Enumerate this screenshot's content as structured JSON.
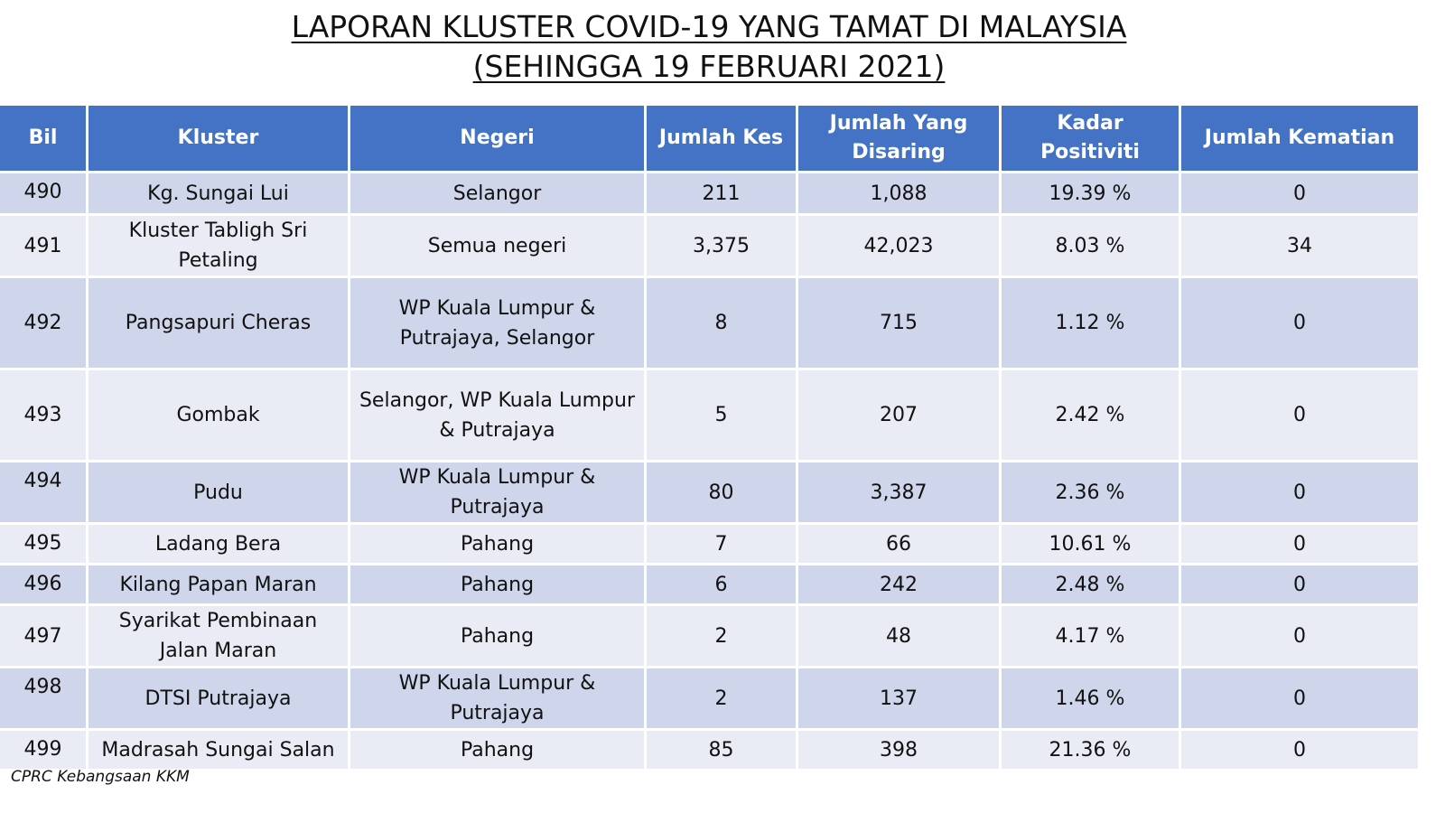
{
  "title": {
    "line1": "LAPORAN KLUSTER COVID-19 YANG TAMAT DI MALAYSIA",
    "line2": "(SEHINGGA 19 FEBRUARI 2021)"
  },
  "table": {
    "headers": {
      "bil": "Bil",
      "kluster": "Kluster",
      "negeri": "Negeri",
      "jumlah_kes": "Jumlah Kes",
      "jumlah_disaring": "Jumlah Yang Disaring",
      "kadar_positiviti": "Kadar Positiviti",
      "jumlah_kematian": "Jumlah Kematian"
    },
    "rows": [
      {
        "bil": "490",
        "kluster": "Kg. Sungai Lui",
        "negeri": "Selangor",
        "jumlah_kes": "211",
        "jumlah_disaring": "1,088",
        "kadar_positiviti": "19.39 %",
        "jumlah_kematian": "0"
      },
      {
        "bil": "491",
        "kluster": "Kluster Tabligh Sri Petaling",
        "negeri": "Semua negeri",
        "jumlah_kes": "3,375",
        "jumlah_disaring": "42,023",
        "kadar_positiviti": "8.03 %",
        "jumlah_kematian": "34"
      },
      {
        "bil": "492",
        "kluster": "Pangsapuri Cheras",
        "negeri": "WP Kuala Lumpur & Putrajaya, Selangor",
        "jumlah_kes": "8",
        "jumlah_disaring": "715",
        "kadar_positiviti": "1.12 %",
        "jumlah_kematian": "0"
      },
      {
        "bil": "493",
        "kluster": "Gombak",
        "negeri": "Selangor, WP Kuala Lumpur & Putrajaya",
        "jumlah_kes": "5",
        "jumlah_disaring": "207",
        "kadar_positiviti": "2.42 %",
        "jumlah_kematian": "0"
      },
      {
        "bil": "494",
        "kluster": "Pudu",
        "negeri": "WP Kuala Lumpur & Putrajaya",
        "jumlah_kes": "80",
        "jumlah_disaring": "3,387",
        "kadar_positiviti": "2.36 %",
        "jumlah_kematian": "0"
      },
      {
        "bil": "495",
        "kluster": "Ladang Bera",
        "negeri": "Pahang",
        "jumlah_kes": "7",
        "jumlah_disaring": "66",
        "kadar_positiviti": "10.61 %",
        "jumlah_kematian": "0"
      },
      {
        "bil": "496",
        "kluster": "Kilang Papan Maran",
        "negeri": "Pahang",
        "jumlah_kes": "6",
        "jumlah_disaring": "242",
        "kadar_positiviti": "2.48 %",
        "jumlah_kematian": "0"
      },
      {
        "bil": "497",
        "kluster": "Syarikat Pembinaan Jalan Maran",
        "negeri": "Pahang",
        "jumlah_kes": "2",
        "jumlah_disaring": "48",
        "kadar_positiviti": "4.17 %",
        "jumlah_kematian": "0"
      },
      {
        "bil": "498",
        "kluster": "DTSI Putrajaya",
        "negeri": "WP Kuala Lumpur & Putrajaya",
        "jumlah_kes": "2",
        "jumlah_disaring": "137",
        "kadar_positiviti": "1.46 %",
        "jumlah_kematian": "0"
      },
      {
        "bil": "499",
        "kluster": "Madrasah Sungai Salan",
        "negeri": "Pahang",
        "jumlah_kes": "85",
        "jumlah_disaring": "398",
        "kadar_positiviti": "21.36 %",
        "jumlah_kematian": "0"
      }
    ]
  },
  "footer": {
    "source": "CPRC Kebangsaan KKM"
  },
  "colors": {
    "header_bg": "#4472c4",
    "row_dark": "#cfd5ea",
    "row_light": "#e9ebf5"
  }
}
